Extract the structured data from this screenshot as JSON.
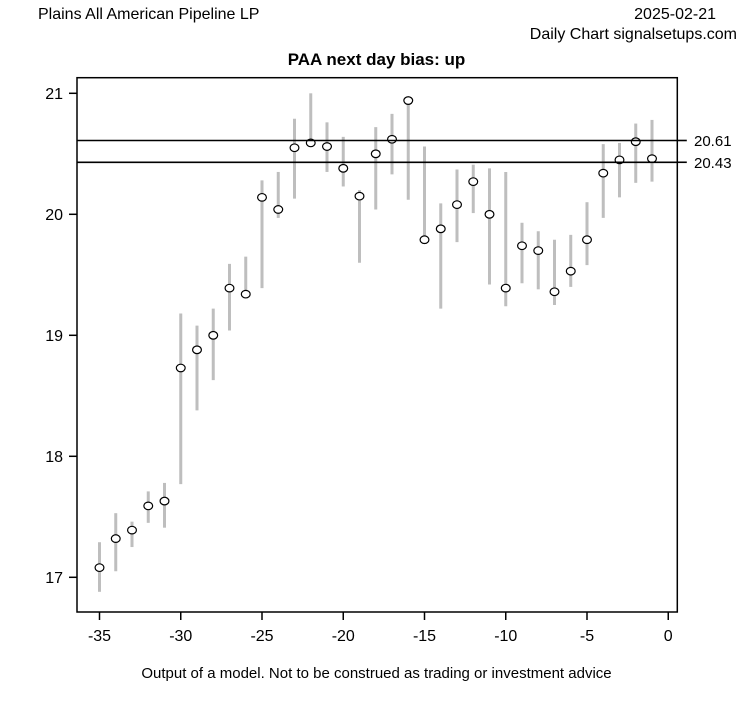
{
  "header": {
    "company": "Plains All American Pipeline LP",
    "date": "2025-02-21",
    "source_line": "Daily Chart signalsetups.com"
  },
  "footer": {
    "disclaimer": "Output of a model. Not to be construed as trading or investment advice"
  },
  "chart_data": {
    "type": "bar",
    "subtype": "high-low-range-with-close-points",
    "title": "PAA next day bias: up",
    "xlabel": "",
    "ylabel": "",
    "xlim": [
      -36.5,
      0.6
    ],
    "ylim": [
      16.7,
      21.13
    ],
    "x_ticks": [
      -35,
      -30,
      -25,
      -20,
      -15,
      -10,
      -5,
      0
    ],
    "y_ticks": [
      17,
      18,
      19,
      20,
      21
    ],
    "grid": "off",
    "legend": "none",
    "bar_color": "#bebebe",
    "point_style": "open-circle",
    "ref_lines": [
      {
        "value": 20.61,
        "label": "20.61",
        "color": "#000000"
      },
      {
        "value": 20.43,
        "label": "20.43",
        "color": "#000000"
      }
    ],
    "bars": [
      {
        "day": -35,
        "low": 16.88,
        "high": 17.29,
        "close": 17.08
      },
      {
        "day": -34,
        "low": 17.05,
        "high": 17.53,
        "close": 17.32
      },
      {
        "day": -33,
        "low": 17.25,
        "high": 17.46,
        "close": 17.39
      },
      {
        "day": -32,
        "low": 17.45,
        "high": 17.71,
        "close": 17.59
      },
      {
        "day": -31,
        "low": 17.41,
        "high": 17.78,
        "close": 17.63
      },
      {
        "day": -30,
        "low": 17.77,
        "high": 19.18,
        "close": 18.73
      },
      {
        "day": -29,
        "low": 18.38,
        "high": 19.08,
        "close": 18.88
      },
      {
        "day": -28,
        "low": 18.63,
        "high": 19.22,
        "close": 19.0
      },
      {
        "day": -27,
        "low": 19.04,
        "high": 19.59,
        "close": 19.39
      },
      {
        "day": -26,
        "low": 19.31,
        "high": 19.65,
        "close": 19.34
      },
      {
        "day": -25,
        "low": 19.39,
        "high": 20.28,
        "close": 20.14
      },
      {
        "day": -24,
        "low": 19.97,
        "high": 20.35,
        "close": 20.04
      },
      {
        "day": -23,
        "low": 20.13,
        "high": 20.79,
        "close": 20.55
      },
      {
        "day": -22,
        "low": 20.58,
        "high": 21.0,
        "close": 20.59
      },
      {
        "day": -21,
        "low": 20.35,
        "high": 20.76,
        "close": 20.56
      },
      {
        "day": -20,
        "low": 20.23,
        "high": 20.64,
        "close": 20.38
      },
      {
        "day": -19,
        "low": 19.6,
        "high": 20.2,
        "close": 20.15
      },
      {
        "day": -18,
        "low": 20.04,
        "high": 20.72,
        "close": 20.5
      },
      {
        "day": -17,
        "low": 20.33,
        "high": 20.83,
        "close": 20.62
      },
      {
        "day": -16,
        "low": 20.12,
        "high": 20.97,
        "close": 20.94
      },
      {
        "day": -15,
        "low": 19.78,
        "high": 20.56,
        "close": 19.79
      },
      {
        "day": -14,
        "low": 19.22,
        "high": 20.09,
        "close": 19.88
      },
      {
        "day": -13,
        "low": 19.77,
        "high": 20.37,
        "close": 20.08
      },
      {
        "day": -12,
        "low": 20.01,
        "high": 20.41,
        "close": 20.27
      },
      {
        "day": -11,
        "low": 19.42,
        "high": 20.38,
        "close": 20.0
      },
      {
        "day": -10,
        "low": 19.24,
        "high": 20.35,
        "close": 19.39
      },
      {
        "day": -9,
        "low": 19.43,
        "high": 19.93,
        "close": 19.74
      },
      {
        "day": -8,
        "low": 19.38,
        "high": 19.86,
        "close": 19.7
      },
      {
        "day": -7,
        "low": 19.25,
        "high": 19.79,
        "close": 19.36
      },
      {
        "day": -6,
        "low": 19.4,
        "high": 19.83,
        "close": 19.53
      },
      {
        "day": -5,
        "low": 19.58,
        "high": 20.1,
        "close": 19.79
      },
      {
        "day": -4,
        "low": 19.97,
        "high": 20.58,
        "close": 20.34
      },
      {
        "day": -3,
        "low": 20.14,
        "high": 20.59,
        "close": 20.45
      },
      {
        "day": -2,
        "low": 20.26,
        "high": 20.75,
        "close": 20.6
      },
      {
        "day": -1,
        "low": 20.27,
        "high": 20.78,
        "close": 20.46
      }
    ]
  }
}
